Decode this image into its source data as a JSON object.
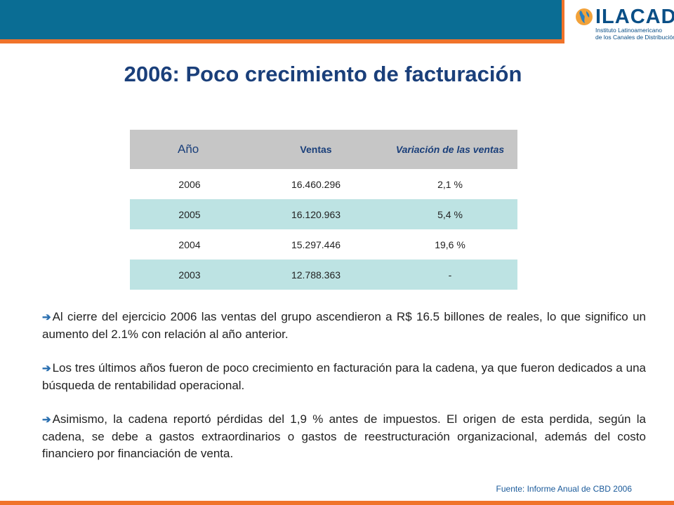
{
  "logo": {
    "name": "ILACAD",
    "subtitle_line1": "Instituto Latinoamericano",
    "subtitle_line2": "de los Canales de Distribución"
  },
  "title": "2006: Poco crecimiento de facturación",
  "table": {
    "headers": [
      "Año",
      "Ventas",
      "Variación de las ventas"
    ],
    "rows": [
      [
        "2006",
        "16.460.296",
        "2,1 %"
      ],
      [
        "2005",
        "16.120.963",
        "5,4 %"
      ],
      [
        "2004",
        "15.297.446",
        "19,6 %"
      ],
      [
        "2003",
        "12.788.363",
        "-"
      ]
    ]
  },
  "paragraphs": [
    "Al cierre del ejercicio 2006 las ventas del grupo ascendieron a R$ 16.5 billones de reales, lo que significo un aumento del 2.1% con relación al año anterior.",
    "Los tres últimos años fueron de poco crecimiento en facturación para la cadena, ya que fueron dedicados a una búsqueda de rentabilidad operacional.",
    "Asimismo, la cadena reportó pérdidas del 1,9 % antes de impuestos. El origen de esta perdida, según la cadena, se debe a gastos extraordinarios o gastos de reestructuración organizacional, además del costo financiero por financiación de venta."
  ],
  "source": "Fuente: Informe Anual de CBD 2006",
  "colors": {
    "header_band": "#0a6d94",
    "accent_orange": "#f0732a",
    "title": "#1a3f7a",
    "row_alt": "#bde3e3"
  },
  "bullet_icon": "arrow-right-icon"
}
